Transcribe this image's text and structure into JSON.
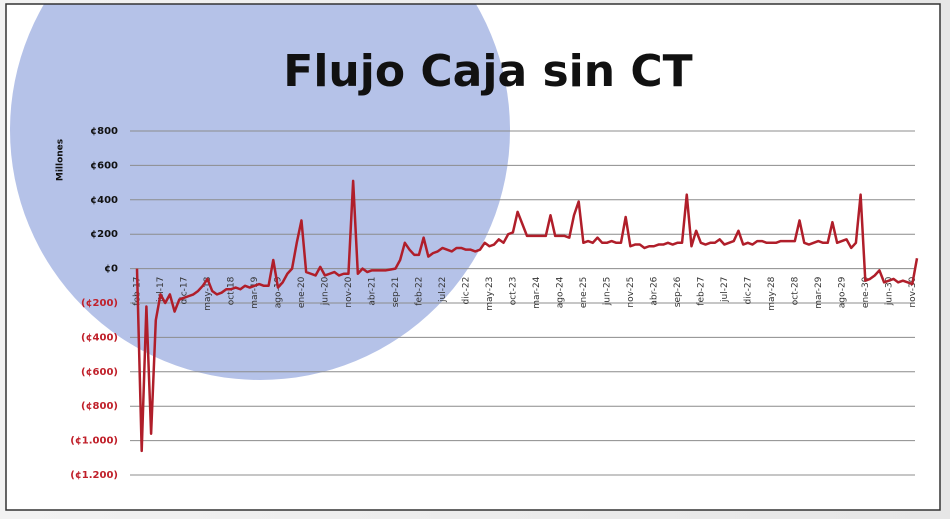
{
  "chart_data": {
    "type": "line",
    "title": "Flujo Caja sin CT",
    "y_axis_label": "Millones",
    "categories": [
      "feb-17",
      null,
      null,
      null,
      null,
      "jul-17",
      null,
      null,
      null,
      null,
      "dic-17",
      null,
      null,
      null,
      null,
      "may-18",
      null,
      null,
      null,
      null,
      "oct-18",
      null,
      null,
      null,
      null,
      "mar-19",
      null,
      null,
      null,
      null,
      "ago-19",
      null,
      null,
      null,
      null,
      "ene-20",
      null,
      null,
      null,
      null,
      "jun-20",
      null,
      null,
      null,
      null,
      "nov-20",
      null,
      null,
      null,
      null,
      "abr-21",
      null,
      null,
      null,
      null,
      "sep-21",
      null,
      null,
      null,
      null,
      "feb-22",
      null,
      null,
      null,
      null,
      "jul-22",
      null,
      null,
      null,
      null,
      "dic-22",
      null,
      null,
      null,
      null,
      "may-23",
      null,
      null,
      null,
      null,
      "oct-23",
      null,
      null,
      null,
      null,
      "mar-24",
      null,
      null,
      null,
      null,
      "ago-24",
      null,
      null,
      null,
      null,
      "ene-25",
      null,
      null,
      null,
      null,
      "jun-25",
      null,
      null,
      null,
      null,
      "nov-25",
      null,
      null,
      null,
      null,
      "abr-26",
      null,
      null,
      null,
      null,
      "sep-26",
      null,
      null,
      null,
      null,
      "feb-27",
      null,
      null,
      null,
      null,
      "jul-27",
      null,
      null,
      null,
      null,
      "dic-27",
      null,
      null,
      null,
      null,
      "may-28",
      null,
      null,
      null,
      null,
      "oct-28",
      null,
      null,
      null,
      null,
      "mar-29",
      null,
      null,
      null,
      null,
      "ago-29",
      null,
      null,
      null,
      null,
      "ene-30",
      null,
      null,
      null,
      null,
      "jun-30",
      null,
      null,
      null,
      null,
      "nov-30",
      null
    ],
    "series": [
      {
        "color": "#b01e2a",
        "values": [
          0,
          -1060,
          -220,
          -960,
          -300,
          -150,
          -200,
          -150,
          -250,
          -180,
          -170,
          -160,
          -150,
          -130,
          -100,
          -60,
          -130,
          -150,
          -140,
          -120,
          -120,
          -110,
          -120,
          -100,
          -110,
          -100,
          -90,
          -100,
          -100,
          50,
          -110,
          -80,
          -30,
          0,
          150,
          280,
          -20,
          -30,
          -40,
          10,
          -40,
          -30,
          -20,
          -40,
          -30,
          -30,
          510,
          -30,
          0,
          -20,
          -10,
          -10,
          -10,
          -10,
          -5,
          0,
          50,
          150,
          110,
          80,
          80,
          180,
          70,
          90,
          100,
          120,
          110,
          100,
          120,
          120,
          110,
          110,
          100,
          110,
          150,
          130,
          140,
          170,
          150,
          200,
          210,
          330,
          260,
          190,
          190,
          190,
          190,
          190,
          310,
          190,
          190,
          190,
          180,
          310,
          390,
          150,
          160,
          150,
          180,
          150,
          150,
          160,
          150,
          150,
          300,
          130,
          140,
          140,
          120,
          130,
          130,
          140,
          140,
          150,
          140,
          150,
          150,
          430,
          130,
          220,
          150,
          140,
          150,
          150,
          170,
          140,
          150,
          160,
          220,
          140,
          150,
          140,
          160,
          160,
          150,
          150,
          150,
          160,
          160,
          160,
          160,
          280,
          150,
          140,
          150,
          160,
          150,
          150,
          270,
          150,
          160,
          170,
          120,
          150,
          430,
          -70,
          -60,
          -40,
          -10,
          -80,
          -70,
          -60,
          -80,
          -70,
          -80,
          -90,
          60
        ]
      }
    ],
    "ylim": [
      -1200,
      800
    ],
    "yticks": [
      {
        "value": 800,
        "label": "¢800"
      },
      {
        "value": 600,
        "label": "¢600"
      },
      {
        "value": 400,
        "label": "¢400"
      },
      {
        "value": 200,
        "label": "¢200"
      },
      {
        "value": 0,
        "label": "¢0"
      },
      {
        "value": -200,
        "label": "(¢200)"
      },
      {
        "value": -400,
        "label": "(¢400)"
      },
      {
        "value": -600,
        "label": "(¢600)"
      },
      {
        "value": -800,
        "label": "(¢800)"
      },
      {
        "value": -1000,
        "label": "(¢1.000)"
      },
      {
        "value": -1200,
        "label": "(¢1.200)"
      }
    ],
    "grid": true,
    "tick_color": "#111111",
    "negative_tick_color": "#c0202a"
  }
}
